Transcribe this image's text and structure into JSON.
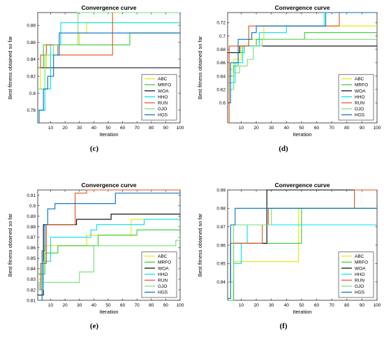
{
  "colors": {
    "ABC": "#e6e600",
    "MRFO": "#33cc33",
    "WOA": "#000000",
    "HHO": "#00e0f0",
    "RUN": "#d95319",
    "GJO": "#77dd77",
    "HGS": "#0072bd"
  },
  "chart_data": [
    {
      "type": "line",
      "caption": "(c)",
      "title": "Convergence curve",
      "xlabel": "Iteration",
      "ylabel": "Best fitness obtained so far",
      "xlim": [
        1,
        100
      ],
      "ylim": [
        0.765,
        0.895
      ],
      "xticks": [
        10,
        20,
        30,
        40,
        50,
        60,
        70,
        80,
        90,
        100
      ],
      "yticks": [
        0.78,
        0.8,
        0.82,
        0.84,
        0.86,
        0.88
      ],
      "ytick_labels": [
        "0.78",
        "0.8",
        "0.82",
        "0.84",
        "0.86",
        "0.88"
      ],
      "legend_position": "bottom-right",
      "series": [
        {
          "name": "ABC",
          "points": [
            [
              1,
              0.805
            ],
            [
              3,
              0.83
            ],
            [
              7,
              0.857
            ],
            [
              30,
              0.871
            ],
            [
              35,
              0.883
            ],
            [
              100,
              0.883
            ]
          ]
        },
        {
          "name": "MRFO",
          "points": [
            [
              1,
              0.83
            ],
            [
              5,
              0.857
            ],
            [
              65,
              0.871
            ],
            [
              100,
              0.871
            ]
          ]
        },
        {
          "name": "WOA",
          "points": [
            [
              1,
              0.83
            ],
            [
              100,
              0.83
            ]
          ]
        },
        {
          "name": "HHO",
          "points": [
            [
              1,
              0.78
            ],
            [
              6,
              0.805
            ],
            [
              10,
              0.857
            ],
            [
              17,
              0.883
            ],
            [
              100,
              0.883
            ]
          ]
        },
        {
          "name": "RUN",
          "points": [
            [
              1,
              0.83
            ],
            [
              3,
              0.845
            ],
            [
              7,
              0.857
            ],
            [
              15,
              0.845
            ],
            [
              53,
              0.895
            ],
            [
              100,
              0.895
            ]
          ]
        },
        {
          "name": "GJO",
          "points": [
            [
              1,
              0.805
            ],
            [
              6,
              0.845
            ],
            [
              12,
              0.857
            ],
            [
              29,
              0.895
            ],
            [
              100,
              0.895
            ]
          ]
        },
        {
          "name": "HGS",
          "points": [
            [
              1,
              0.765
            ],
            [
              2,
              0.78
            ],
            [
              5,
              0.805
            ],
            [
              8,
              0.82
            ],
            [
              12,
              0.845
            ],
            [
              16,
              0.871
            ],
            [
              100,
              0.871
            ]
          ]
        }
      ]
    },
    {
      "type": "line",
      "caption": "(d)",
      "title": "Convergence curve",
      "xlabel": "Iteration",
      "ylabel": "Best fitness obtained so far",
      "xlim": [
        1,
        100
      ],
      "ylim": [
        0.57,
        0.735
      ],
      "xticks": [
        10,
        20,
        30,
        40,
        50,
        60,
        70,
        80,
        90,
        100
      ],
      "yticks": [
        0.6,
        0.62,
        0.64,
        0.66,
        0.68,
        0.7,
        0.72
      ],
      "ytick_labels": [
        "0.6",
        "0.62",
        "0.64",
        "0.66",
        "0.68",
        "0.7",
        "0.72"
      ],
      "legend_position": "bottom-right",
      "series": [
        {
          "name": "ABC",
          "points": [
            [
              1,
              0.65
            ],
            [
              5,
              0.665
            ],
            [
              10,
              0.685
            ],
            [
              15,
              0.695
            ],
            [
              25,
              0.715
            ],
            [
              100,
              0.715
            ]
          ]
        },
        {
          "name": "MRFO",
          "points": [
            [
              1,
              0.64
            ],
            [
              5,
              0.655
            ],
            [
              8,
              0.675
            ],
            [
              12,
              0.685
            ],
            [
              20,
              0.695
            ],
            [
              52,
              0.705
            ],
            [
              100,
              0.705
            ]
          ]
        },
        {
          "name": "WOA",
          "points": [
            [
              1,
              0.675
            ],
            [
              9,
              0.685
            ],
            [
              100,
              0.685
            ]
          ]
        },
        {
          "name": "HHO",
          "points": [
            [
              1,
              0.63
            ],
            [
              6,
              0.66
            ],
            [
              11,
              0.685
            ],
            [
              22,
              0.705
            ],
            [
              40,
              0.715
            ],
            [
              65,
              0.735
            ],
            [
              100,
              0.735
            ]
          ]
        },
        {
          "name": "RUN",
          "points": [
            [
              1,
              0.57
            ],
            [
              2,
              0.685
            ],
            [
              15,
              0.715
            ],
            [
              75,
              0.735
            ],
            [
              100,
              0.735
            ]
          ]
        },
        {
          "name": "GJO",
          "points": [
            [
              1,
              0.62
            ],
            [
              5,
              0.645
            ],
            [
              9,
              0.655
            ],
            [
              14,
              0.665
            ],
            [
              18,
              0.685
            ],
            [
              24,
              0.695
            ],
            [
              100,
              0.695
            ]
          ]
        },
        {
          "name": "HGS",
          "points": [
            [
              1,
              0.6
            ],
            [
              3,
              0.66
            ],
            [
              8,
              0.695
            ],
            [
              17,
              0.705
            ],
            [
              20,
              0.715
            ],
            [
              40,
              0.715
            ],
            [
              66,
              0.735
            ],
            [
              100,
              0.735
            ]
          ]
        }
      ]
    },
    {
      "type": "line",
      "caption": "(e)",
      "title": "Convergence curve",
      "xlabel": "Iteration",
      "ylabel": "Best fitness obtained so far",
      "xlim": [
        1,
        100
      ],
      "ylim": [
        0.81,
        0.915
      ],
      "xticks": [
        10,
        20,
        30,
        40,
        50,
        60,
        70,
        80,
        90,
        100
      ],
      "yticks": [
        0.81,
        0.82,
        0.83,
        0.84,
        0.85,
        0.86,
        0.87,
        0.88,
        0.89,
        0.9,
        0.91
      ],
      "ytick_labels": [
        "0.81",
        "0.82",
        "0.83",
        "0.84",
        "0.85",
        "0.86",
        "0.87",
        "0.88",
        "0.89",
        "0.9",
        "0.91"
      ],
      "legend_position": "bottom-right",
      "series": [
        {
          "name": "ABC",
          "points": [
            [
              1,
              0.83
            ],
            [
              4,
              0.845
            ],
            [
              6,
              0.862
            ],
            [
              12,
              0.862
            ],
            [
              35,
              0.872
            ],
            [
              66,
              0.887
            ],
            [
              100,
              0.887
            ]
          ]
        },
        {
          "name": "MRFO",
          "points": [
            [
              1,
              0.835
            ],
            [
              6,
              0.855
            ],
            [
              15,
              0.862
            ],
            [
              43,
              0.872
            ],
            [
              70,
              0.877
            ],
            [
              100,
              0.885
            ]
          ]
        },
        {
          "name": "WOA",
          "points": [
            [
              1,
              0.815
            ],
            [
              5,
              0.882
            ],
            [
              28,
              0.887
            ],
            [
              52,
              0.892
            ],
            [
              100,
              0.892
            ]
          ]
        },
        {
          "name": "HHO",
          "points": [
            [
              1,
              0.82
            ],
            [
              5,
              0.847
            ],
            [
              10,
              0.87
            ],
            [
              38,
              0.877
            ],
            [
              42,
              0.882
            ],
            [
              75,
              0.887
            ],
            [
              100,
              0.887
            ]
          ]
        },
        {
          "name": "RUN",
          "points": [
            [
              1,
              0.82
            ],
            [
              3,
              0.845
            ],
            [
              7,
              0.882
            ],
            [
              27,
              0.912
            ],
            [
              35,
              0.915
            ],
            [
              100,
              0.915
            ]
          ]
        },
        {
          "name": "GJO",
          "points": [
            [
              1,
              0.82
            ],
            [
              2,
              0.827
            ],
            [
              30,
              0.837
            ],
            [
              40,
              0.862
            ],
            [
              97,
              0.867
            ],
            [
              100,
              0.872
            ]
          ]
        },
        {
          "name": "HGS",
          "points": [
            [
              1,
              0.81
            ],
            [
              4,
              0.857
            ],
            [
              6,
              0.882
            ],
            [
              8,
              0.897
            ],
            [
              13,
              0.902
            ],
            [
              55,
              0.912
            ],
            [
              100,
              0.912
            ]
          ]
        }
      ]
    },
    {
      "type": "line",
      "caption": "(f)",
      "title": "Convergence curve",
      "xlabel": "Iteration",
      "ylabel": "Best fitness obtained so far",
      "xlim": [
        1,
        100
      ],
      "ylim": [
        0.93,
        0.99
      ],
      "xticks": [
        10,
        20,
        30,
        40,
        50,
        60,
        70,
        80,
        90,
        100
      ],
      "yticks": [
        0.94,
        0.95,
        0.96,
        0.97,
        0.98,
        0.99
      ],
      "ytick_labels": [
        "0.94",
        "0.95",
        "0.96",
        "0.97",
        "0.98",
        "0.99"
      ],
      "legend_position": "bottom-right",
      "series": [
        {
          "name": "ABC",
          "points": [
            [
              1,
              0.93
            ],
            [
              5,
              0.951
            ],
            [
              46,
              0.951
            ],
            [
              48,
              0.98
            ],
            [
              100,
              0.98
            ]
          ]
        },
        {
          "name": "MRFO",
          "points": [
            [
              1,
              0.93
            ],
            [
              5,
              0.961
            ],
            [
              10,
              0.961
            ],
            [
              50,
              0.98
            ],
            [
              100,
              0.98
            ]
          ]
        },
        {
          "name": "WOA",
          "points": [
            [
              1,
              0.94
            ],
            [
              3,
              0.961
            ],
            [
              22,
              0.961
            ],
            [
              27,
              0.99
            ],
            [
              100,
              0.99
            ]
          ]
        },
        {
          "name": "HHO",
          "points": [
            [
              1,
              0.94
            ],
            [
              5,
              0.95
            ],
            [
              10,
              0.961
            ],
            [
              14,
              0.971
            ],
            [
              100,
              0.971
            ]
          ]
        },
        {
          "name": "RUN",
          "points": [
            [
              1,
              0.94
            ],
            [
              3,
              0.961
            ],
            [
              20,
              0.961
            ],
            [
              24,
              0.971
            ],
            [
              28,
              0.98
            ],
            [
              85,
              0.99
            ],
            [
              100,
              0.99
            ]
          ]
        },
        {
          "name": "GJO",
          "points": [
            [
              1,
              0.94
            ],
            [
              5,
              0.971
            ],
            [
              26,
              0.971
            ],
            [
              30,
              0.98
            ],
            [
              100,
              0.98
            ]
          ]
        },
        {
          "name": "HGS",
          "points": [
            [
              1,
              0.931
            ],
            [
              3,
              0.971
            ],
            [
              6,
              0.98
            ],
            [
              100,
              0.98
            ]
          ]
        }
      ]
    }
  ]
}
